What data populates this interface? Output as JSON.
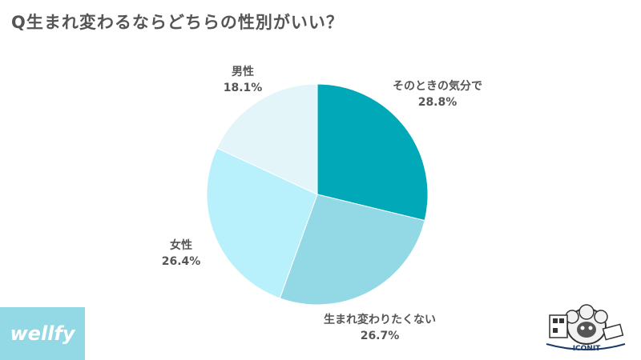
{
  "title": "Q生まれ変わるならどちらの性別がいい？",
  "chart_data": {
    "type": "pie",
    "title": "Q生まれ変わるならどちらの性別がいい？",
    "slices": [
      {
        "label": "そのときの気分で",
        "value": 28.8,
        "value_label": "28.8%",
        "color": "#00a8b8"
      },
      {
        "label": "生まれ変わりたくない",
        "value": 26.7,
        "value_label": "26.7%",
        "color": "#93d9e5"
      },
      {
        "label": "女性",
        "value": 26.4,
        "value_label": "26.4%",
        "color": "#b8f1fb"
      },
      {
        "label": "男性",
        "value": 18.1,
        "value_label": "18.1%",
        "color": "#e3f5f9"
      }
    ]
  },
  "logo_left": {
    "text": "wellfy"
  },
  "logo_right": {
    "text": "ICONIT"
  }
}
